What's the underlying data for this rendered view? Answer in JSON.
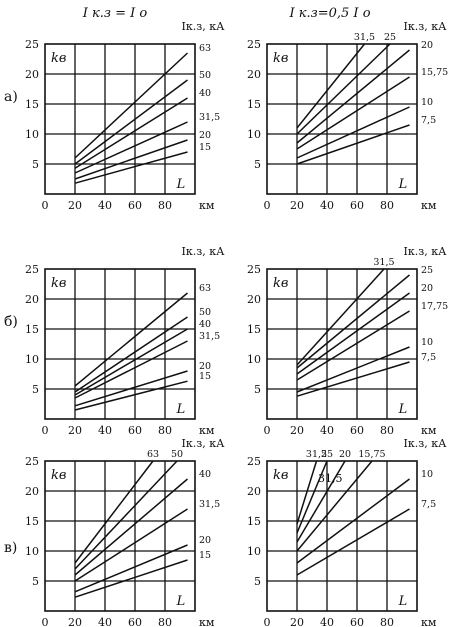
{
  "headers": {
    "left": "I к.з = I о",
    "right": "I к.з=0,5 I о"
  },
  "row_labels": [
    "а)",
    "б)",
    "в)"
  ],
  "chart_data": [
    {
      "type": "line",
      "row": "а)",
      "col": "left",
      "ylabel": "kв",
      "xlabel": "L",
      "xunit": "км",
      "legend_title": "Iк.з, кА",
      "xlim": [
        0,
        100
      ],
      "ylim": [
        0,
        25
      ],
      "xticks": [
        "0",
        "20",
        "40",
        "60",
        "80"
      ],
      "yticks": [
        "5",
        "10",
        "15",
        "20",
        "25"
      ],
      "grid": true,
      "series": [
        {
          "name": "63",
          "x": [
            20,
            95
          ],
          "y": [
            6,
            23.5
          ]
        },
        {
          "name": "50",
          "x": [
            20,
            95
          ],
          "y": [
            5,
            19
          ]
        },
        {
          "name": "40",
          "x": [
            20,
            95
          ],
          "y": [
            4.3,
            16
          ]
        },
        {
          "name": "31,5",
          "x": [
            20,
            95
          ],
          "y": [
            3.5,
            12
          ]
        },
        {
          "name": "20",
          "x": [
            20,
            95
          ],
          "y": [
            2.5,
            9
          ]
        },
        {
          "name": "15",
          "x": [
            20,
            95
          ],
          "y": [
            1.8,
            7
          ]
        }
      ]
    },
    {
      "type": "line",
      "row": "а)",
      "col": "right",
      "ylabel": "kв",
      "xlabel": "L",
      "xunit": "км",
      "legend_title": "Iк.з, кА",
      "xlim": [
        0,
        100
      ],
      "ylim": [
        0,
        25
      ],
      "xticks": [
        "0",
        "20",
        "40",
        "60",
        "80"
      ],
      "yticks": [
        "5",
        "10",
        "15",
        "20",
        "25"
      ],
      "grid": true,
      "series": [
        {
          "name": "31,5",
          "x": [
            20,
            65
          ],
          "y": [
            11,
            25
          ]
        },
        {
          "name": "25",
          "x": [
            20,
            82
          ],
          "y": [
            10,
            25
          ]
        },
        {
          "name": "20",
          "x": [
            20,
            95
          ],
          "y": [
            8.5,
            24
          ]
        },
        {
          "name": "15,75",
          "x": [
            20,
            95
          ],
          "y": [
            7.5,
            19.5
          ]
        },
        {
          "name": "10",
          "x": [
            20,
            95
          ],
          "y": [
            6,
            14.5
          ]
        },
        {
          "name": "7,5",
          "x": [
            20,
            95
          ],
          "y": [
            5,
            11.5
          ]
        }
      ]
    },
    {
      "type": "line",
      "row": "б)",
      "col": "left",
      "ylabel": "kв",
      "xlabel": "L",
      "xunit": "км",
      "legend_title": "Iк.з, кА",
      "xlim": [
        0,
        100
      ],
      "ylim": [
        0,
        25
      ],
      "xticks": [
        "0",
        "20",
        "40",
        "60",
        "80"
      ],
      "yticks": [
        "5",
        "10",
        "15",
        "20",
        "25"
      ],
      "grid": true,
      "series": [
        {
          "name": "63",
          "x": [
            20,
            95
          ],
          "y": [
            5.5,
            21
          ]
        },
        {
          "name": "50",
          "x": [
            20,
            95
          ],
          "y": [
            4.5,
            17
          ]
        },
        {
          "name": "40",
          "x": [
            20,
            95
          ],
          "y": [
            4,
            15
          ]
        },
        {
          "name": "31,5",
          "x": [
            20,
            95
          ],
          "y": [
            3.5,
            13
          ]
        },
        {
          "name": "20",
          "x": [
            20,
            95
          ],
          "y": [
            2.2,
            8
          ]
        },
        {
          "name": "15",
          "x": [
            20,
            95
          ],
          "y": [
            1.5,
            6.3
          ]
        }
      ]
    },
    {
      "type": "line",
      "row": "б)",
      "col": "right",
      "ylabel": "kв",
      "xlabel": "L",
      "xunit": "км",
      "legend_title": "Iк.з, кА",
      "xlim": [
        0,
        100
      ],
      "ylim": [
        0,
        25
      ],
      "xticks": [
        "0",
        "20",
        "40",
        "60",
        "80"
      ],
      "yticks": [
        "5",
        "10",
        "15",
        "20",
        "25"
      ],
      "grid": true,
      "series": [
        {
          "name": "31,5",
          "x": [
            20,
            78
          ],
          "y": [
            9,
            25
          ]
        },
        {
          "name": "25",
          "x": [
            20,
            95
          ],
          "y": [
            8.5,
            24
          ]
        },
        {
          "name": "20",
          "x": [
            20,
            95
          ],
          "y": [
            7.5,
            21
          ]
        },
        {
          "name": "17,75",
          "x": [
            20,
            95
          ],
          "y": [
            6.5,
            18
          ]
        },
        {
          "name": "10",
          "x": [
            20,
            95
          ],
          "y": [
            4.5,
            12
          ]
        },
        {
          "name": "7,5",
          "x": [
            20,
            95
          ],
          "y": [
            3.8,
            9.5
          ]
        }
      ]
    },
    {
      "type": "line",
      "row": "в)",
      "col": "left",
      "ylabel": "kв",
      "xlabel": "L",
      "xunit": "км",
      "legend_title": "Iк.з, кА",
      "xlim": [
        0,
        100
      ],
      "ylim": [
        0,
        25
      ],
      "xticks": [
        "0",
        "20",
        "40",
        "60",
        "80"
      ],
      "yticks": [
        "5",
        "10",
        "15",
        "20",
        "25"
      ],
      "grid": true,
      "series": [
        {
          "name": "63",
          "x": [
            20,
            72
          ],
          "y": [
            8,
            25
          ]
        },
        {
          "name": "50",
          "x": [
            20,
            88
          ],
          "y": [
            7,
            25
          ]
        },
        {
          "name": "40",
          "x": [
            20,
            95
          ],
          "y": [
            6,
            22
          ]
        },
        {
          "name": "31,5",
          "x": [
            20,
            95
          ],
          "y": [
            5,
            17
          ]
        },
        {
          "name": "20",
          "x": [
            20,
            95
          ],
          "y": [
            3.2,
            11
          ]
        },
        {
          "name": "15",
          "x": [
            20,
            95
          ],
          "y": [
            2.3,
            8.5
          ]
        }
      ]
    },
    {
      "type": "line",
      "row": "в)",
      "col": "right",
      "ylabel": "kв",
      "xlabel": "L",
      "xunit": "км",
      "legend_title": "Iк.з, кА",
      "xlim": [
        0,
        100
      ],
      "ylim": [
        0,
        25
      ],
      "xticks": [
        "0",
        "20",
        "40",
        "60",
        "80"
      ],
      "yticks": [
        "5",
        "10",
        "15",
        "20",
        "25"
      ],
      "grid": true,
      "annotations": [
        {
          "text": "31,5",
          "x": 34,
          "y": 21.5
        }
      ],
      "series": [
        {
          "name": "31,5",
          "x": [
            20,
            33
          ],
          "y": [
            14.5,
            25
          ]
        },
        {
          "name": "25",
          "x": [
            20,
            40
          ],
          "y": [
            13,
            25
          ]
        },
        {
          "name": "20",
          "x": [
            20,
            52
          ],
          "y": [
            11.5,
            25
          ]
        },
        {
          "name": "15,75",
          "x": [
            20,
            70
          ],
          "y": [
            10,
            25
          ]
        },
        {
          "name": "10",
          "x": [
            20,
            95
          ],
          "y": [
            8,
            22
          ]
        },
        {
          "name": "7,5",
          "x": [
            20,
            95
          ],
          "y": [
            6,
            17
          ]
        }
      ]
    }
  ]
}
